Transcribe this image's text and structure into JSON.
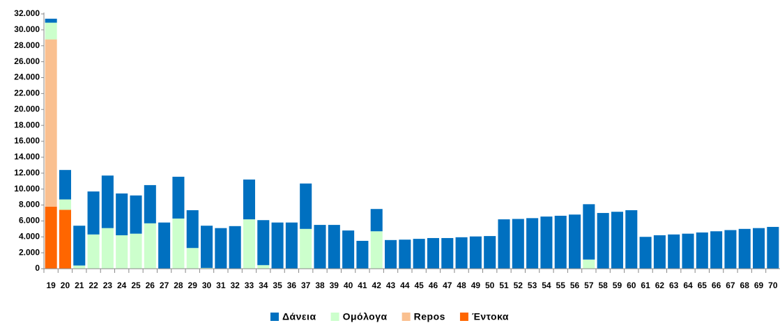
{
  "chart_data": {
    "type": "stacked_bar",
    "categories": [
      "19",
      "20",
      "21",
      "22",
      "23",
      "24",
      "25",
      "26",
      "27",
      "28",
      "29",
      "30",
      "31",
      "32",
      "33",
      "34",
      "35",
      "36",
      "37",
      "38",
      "39",
      "40",
      "41",
      "42",
      "43",
      "44",
      "45",
      "46",
      "47",
      "48",
      "49",
      "50",
      "51",
      "52",
      "53",
      "54",
      "55",
      "56",
      "57",
      "58",
      "59",
      "60",
      "61",
      "62",
      "63",
      "64",
      "65",
      "66",
      "67",
      "68",
      "69",
      "70"
    ],
    "series": [
      {
        "name": "Δάνεια",
        "color": "#0070c0",
        "values": [
          500,
          3700,
          5000,
          5400,
          6600,
          5250,
          4800,
          4800,
          5800,
          5250,
          4750,
          5300,
          5100,
          5350,
          5000,
          5650,
          5800,
          5800,
          5700,
          5500,
          5500,
          4800,
          3500,
          2800,
          3600,
          3650,
          3750,
          3850,
          3850,
          3950,
          4050,
          4100,
          6200,
          6250,
          6350,
          6550,
          6650,
          6800,
          6950,
          7000,
          7150,
          7350,
          4000,
          4200,
          4300,
          4400,
          4550,
          4700,
          4850,
          5000,
          5100,
          5250
        ]
      },
      {
        "name": "Ομόλογα",
        "color": "#ccffcc",
        "values": [
          2100,
          1300,
          400,
          4300,
          5100,
          4200,
          4400,
          5700,
          0,
          6300,
          2600,
          100,
          0,
          0,
          6200,
          450,
          0,
          0,
          5000,
          0,
          0,
          0,
          0,
          4700,
          0,
          0,
          0,
          0,
          0,
          0,
          0,
          0,
          0,
          0,
          0,
          0,
          0,
          0,
          1150,
          0,
          0,
          0,
          0,
          0,
          0,
          0,
          0,
          0,
          0,
          0,
          0,
          0
        ]
      },
      {
        "name": "Repos",
        "color": "#fac090",
        "values": [
          21000,
          0,
          0,
          0,
          0,
          0,
          0,
          0,
          0,
          0,
          0,
          0,
          0,
          0,
          0,
          0,
          0,
          0,
          0,
          0,
          0,
          0,
          0,
          0,
          0,
          0,
          0,
          0,
          0,
          0,
          0,
          0,
          0,
          0,
          0,
          0,
          0,
          0,
          0,
          0,
          0,
          0,
          0,
          0,
          0,
          0,
          0,
          0,
          0,
          0,
          0,
          0
        ]
      },
      {
        "name": "Έντοκα",
        "color": "#ff6600",
        "values": [
          7800,
          7400,
          0,
          0,
          0,
          0,
          0,
          0,
          0,
          0,
          0,
          0,
          0,
          0,
          0,
          0,
          0,
          0,
          0,
          0,
          0,
          0,
          0,
          0,
          0,
          0,
          0,
          0,
          0,
          0,
          0,
          0,
          0,
          0,
          0,
          0,
          0,
          0,
          0,
          0,
          0,
          0,
          0,
          0,
          0,
          0,
          0,
          0,
          0,
          0,
          0,
          0
        ]
      }
    ],
    "ylim": [
      0,
      32000
    ],
    "yticks": [
      0,
      {
        "value": 2000,
        "label": "2.000"
      },
      {
        "value": 4000,
        "label": "4.000"
      },
      {
        "value": 6000,
        "label": "6.000"
      },
      {
        "value": 8000,
        "label": "8.000"
      },
      {
        "value": 10000,
        "label": "10.000"
      },
      {
        "value": 12000,
        "label": "12.000"
      },
      {
        "value": 14000,
        "label": "14.000"
      },
      {
        "value": 16000,
        "label": "16.000"
      },
      {
        "value": 18000,
        "label": "18.000"
      },
      {
        "value": 20000,
        "label": "20.000"
      },
      {
        "value": 22000,
        "label": "22.000"
      },
      {
        "value": 24000,
        "label": "24.000"
      },
      {
        "value": 26000,
        "label": "26.000"
      },
      {
        "value": 28000,
        "label": "28.000"
      },
      {
        "value": 30000,
        "label": "30.000"
      },
      {
        "value": 32000,
        "label": "32.000"
      }
    ],
    "grid": false,
    "legend": "bottom"
  }
}
